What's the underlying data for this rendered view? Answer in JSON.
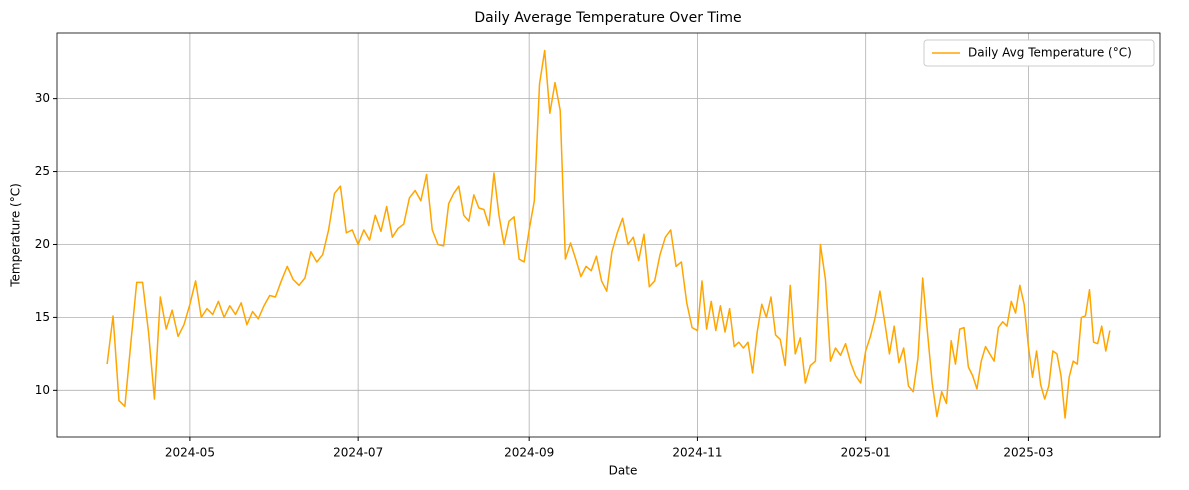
{
  "chart_data": {
    "type": "line",
    "title": "Daily Average Temperature Over Time",
    "xlabel": "Date",
    "ylabel": "Temperature (°C)",
    "x": [
      "2024-04",
      "2024-04",
      "2024-04",
      "2024-04",
      "2024-04",
      "2024-04",
      "2024-04",
      "2024-04",
      "2024-04",
      "2024-04",
      "2024-04",
      "2024-04",
      "2024-04",
      "2024-04",
      "2024-05",
      "2024-05",
      "2024-05",
      "2024-05",
      "2024-05",
      "2024-05",
      "2024-05",
      "2024-05",
      "2024-05",
      "2024-05",
      "2024-05",
      "2024-05",
      "2024-05",
      "2024-05",
      "2024-05",
      "2024-06",
      "2024-06",
      "2024-06",
      "2024-06",
      "2024-06",
      "2024-06",
      "2024-06",
      "2024-06",
      "2024-06",
      "2024-06",
      "2024-06",
      "2024-06",
      "2024-06",
      "2024-06",
      "2024-07",
      "2024-07",
      "2024-07",
      "2024-07",
      "2024-07",
      "2024-07",
      "2024-07",
      "2024-07",
      "2024-07",
      "2024-07",
      "2024-07",
      "2024-07",
      "2024-07",
      "2024-07",
      "2024-07",
      "2024-08",
      "2024-08",
      "2024-08",
      "2024-08",
      "2024-08",
      "2024-08",
      "2024-08",
      "2024-08",
      "2024-08",
      "2024-08",
      "2024-08",
      "2024-08",
      "2024-08",
      "2024-08",
      "2024-08",
      "2024-08",
      "2024-08",
      "2024-09",
      "2024-09",
      "2024-09",
      "2024-09",
      "2024-09",
      "2024-09",
      "2024-09",
      "2024-09",
      "2024-09",
      "2024-09",
      "2024-09",
      "2024-09",
      "2024-09",
      "2024-09",
      "2024-09",
      "2024-09",
      "2024-10",
      "2024-10",
      "2024-10",
      "2024-10",
      "2024-10",
      "2024-10",
      "2024-10",
      "2024-10",
      "2024-10",
      "2024-10",
      "2024-10",
      "2024-10",
      "2024-10",
      "2024-10",
      "2024-10",
      "2024-10",
      "2024-11",
      "2024-11",
      "2024-11",
      "2024-11",
      "2024-11",
      "2024-11",
      "2024-11",
      "2024-11",
      "2024-11",
      "2024-11",
      "2024-11",
      "2024-11",
      "2024-11",
      "2024-11",
      "2024-11",
      "2024-11",
      "2024-11",
      "2024-11",
      "2024-12",
      "2024-12",
      "2024-12",
      "2024-12",
      "2024-12",
      "2024-12",
      "2024-12",
      "2024-12",
      "2024-12",
      "2024-12",
      "2024-12",
      "2024-12",
      "2024-12",
      "2024-12",
      "2024-12",
      "2024-12",
      "2024-12",
      "2025-01",
      "2025-01",
      "2025-01",
      "2025-01",
      "2025-01",
      "2025-01",
      "2025-01",
      "2025-01",
      "2025-01",
      "2025-01",
      "2025-01",
      "2025-01",
      "2025-01",
      "2025-01",
      "2025-01",
      "2025-01",
      "2025-01",
      "2025-01",
      "2025-02",
      "2025-02",
      "2025-02",
      "2025-02",
      "2025-02",
      "2025-02",
      "2025-02",
      "2025-02",
      "2025-02",
      "2025-02",
      "2025-02",
      "2025-02",
      "2025-02",
      "2025-02",
      "2025-02",
      "2025-02",
      "2025-02",
      "2025-02",
      "2025-03",
      "2025-03",
      "2025-03",
      "2025-03",
      "2025-03",
      "2025-03",
      "2025-03",
      "2025-03",
      "2025-03",
      "2025-03",
      "2025-03",
      "2025-03",
      "2025-03",
      "2025-03",
      "2025-03",
      "2025-03",
      "2025-03",
      "2025-03",
      "2025-03",
      "2025-03",
      "2025-03"
    ],
    "series": [
      {
        "name": "Daily Avg Temperature (°C)",
        "color": "#ffa500",
        "values": [
          11.8,
          15.1,
          9.3,
          8.9,
          13.2,
          17.4,
          17.4,
          14.0,
          9.4,
          16.4,
          14.2,
          15.5,
          13.7,
          14.5,
          15.9,
          17.5,
          15.0,
          15.6,
          15.2,
          16.1,
          15.0,
          15.8,
          15.2,
          16.0,
          14.5,
          15.4,
          14.9,
          15.8,
          16.5,
          16.4,
          17.5,
          18.5,
          17.6,
          17.2,
          17.7,
          19.5,
          18.8,
          19.3,
          21.0,
          23.5,
          24.0,
          20.8,
          21.0,
          20.0,
          21.0,
          20.3,
          22.0,
          20.9,
          22.6,
          20.5,
          21.1,
          21.4,
          23.2,
          23.7,
          23.0,
          24.8,
          21.0,
          20.0,
          19.9,
          22.8,
          23.5,
          24.0,
          22.0,
          21.6,
          23.4,
          22.5,
          22.4,
          21.3,
          24.9,
          22.0,
          20.0,
          21.6,
          21.9,
          19.0,
          18.8,
          21.0,
          23.0,
          31.0,
          33.3,
          29.0,
          31.1,
          29.2,
          19.0,
          20.1,
          19.0,
          17.8,
          18.5,
          18.2,
          19.2,
          17.5,
          16.8,
          19.5,
          20.8,
          21.8,
          20.0,
          20.5,
          18.9,
          20.7,
          17.1,
          17.5,
          19.3,
          20.5,
          21.0,
          18.5,
          18.8,
          16.0,
          14.3,
          14.1,
          17.5,
          14.2,
          16.1,
          14.1,
          15.8,
          14.0,
          15.6,
          13.0,
          13.3,
          12.9,
          13.3,
          11.2,
          14.0,
          15.9,
          15.0,
          16.4,
          13.8,
          13.5,
          11.7,
          17.2,
          12.5,
          13.6,
          10.5,
          11.7,
          12.0,
          20.0,
          17.6,
          12.0,
          12.9,
          12.4,
          13.2,
          11.9,
          11.0,
          10.5,
          12.7,
          13.7,
          15.0,
          16.8,
          14.7,
          12.5,
          14.4,
          11.9,
          12.9,
          10.3,
          9.9,
          12.2,
          17.7,
          14.0,
          10.5,
          8.2,
          9.9,
          9.1,
          13.4,
          11.8,
          14.2,
          14.3,
          11.6,
          11.0,
          10.1,
          12.0,
          13.0,
          12.5,
          12.0,
          14.3,
          14.7,
          14.4,
          16.1,
          15.3,
          17.2,
          15.9,
          13.0,
          10.9,
          12.7,
          10.4,
          9.4,
          10.3,
          12.7,
          12.5,
          11.0,
          8.1,
          10.9,
          12.0,
          11.8,
          15.0,
          15.1,
          16.9,
          13.3,
          13.2,
          14.4,
          12.7,
          14.1
        ]
      }
    ],
    "xticks": [
      "2024-05",
      "2024-07",
      "2024-09",
      "2024-11",
      "2025-01",
      "2025-03"
    ],
    "ylim": [
      6.8,
      34.5
    ],
    "yticks": [
      10,
      15,
      20,
      25,
      30
    ],
    "grid": true,
    "legend": "upper right"
  }
}
